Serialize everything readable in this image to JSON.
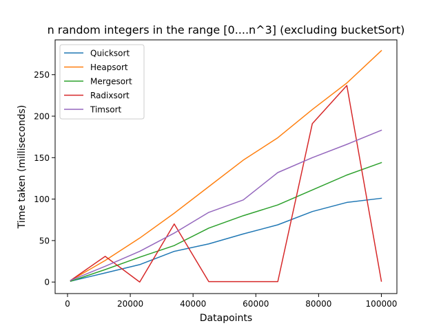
{
  "chart_data": {
    "type": "line",
    "title": "n random integers in the range [0....n^3] (excluding bucketSort)",
    "xlabel": "Datapoints",
    "ylabel": "Time taken (milliseconds)",
    "xlim": [
      -3950,
      104950
    ],
    "ylim": [
      -13.9,
      292
    ],
    "xticks": [
      0,
      20000,
      40000,
      60000,
      80000,
      100000
    ],
    "xtick_labels": [
      "0",
      "20000",
      "40000",
      "60000",
      "80000",
      "100000"
    ],
    "yticks": [
      0,
      50,
      100,
      150,
      200,
      250
    ],
    "ytick_labels": [
      "0",
      "50",
      "100",
      "150",
      "200",
      "250"
    ],
    "grid": false,
    "legend_position": "top-left",
    "x": [
      1000,
      12000,
      23000,
      34000,
      45000,
      56000,
      67000,
      78000,
      89000,
      100000
    ],
    "series": [
      {
        "name": "Quicksort",
        "color": "#1f77b4",
        "values": [
          1,
          11,
          21,
          37,
          46,
          58,
          69,
          85,
          96,
          101
        ]
      },
      {
        "name": "Heapsort",
        "color": "#ff7f0e",
        "values": [
          2,
          26,
          53,
          83,
          115,
          147,
          174,
          208,
          240,
          279
        ]
      },
      {
        "name": "Mergesort",
        "color": "#2ca02c",
        "values": [
          1,
          15,
          30,
          44,
          65,
          80,
          93,
          111,
          129,
          144
        ]
      },
      {
        "name": "Radixsort",
        "color": "#d62728",
        "values": [
          2,
          31,
          0,
          70,
          0.5,
          0.5,
          0.5,
          191,
          237,
          1
        ]
      },
      {
        "name": "Timsort",
        "color": "#9467bd",
        "values": [
          2,
          19,
          37,
          59,
          84,
          99,
          132,
          150,
          166,
          183
        ]
      }
    ]
  }
}
